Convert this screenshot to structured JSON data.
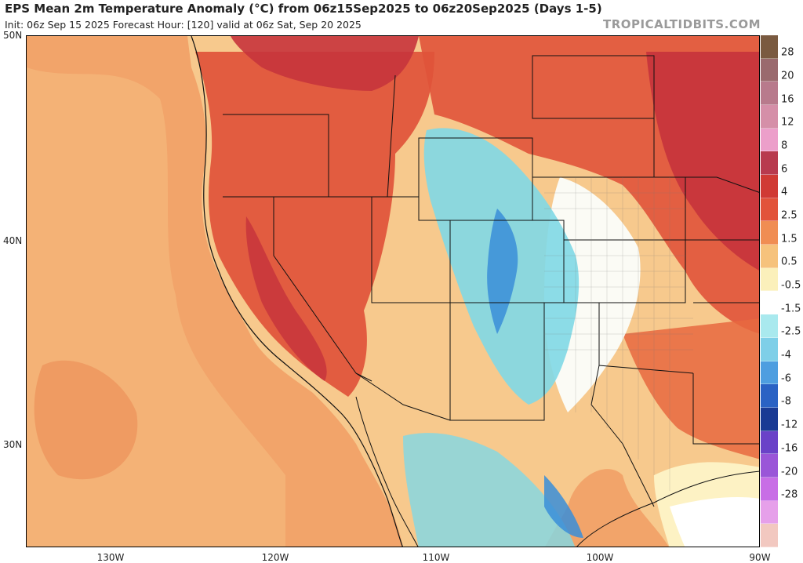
{
  "header": {
    "title": "EPS Mean 2m Temperature Anomaly (°C) from 06z15Sep2025 to 06z20Sep2025 (Days 1-5)",
    "subtitle": "Init: 06z Sep 15 2025   Forecast Hour: [120]   valid at 06z Sat, Sep 20 2025",
    "credit": "TROPICALTIDBITS.COM"
  },
  "axes": {
    "lat_labels": [
      "50N",
      "40N",
      "30N"
    ],
    "lon_labels": [
      "130W",
      "120W",
      "110W",
      "100W",
      "90W"
    ]
  },
  "colorbar": {
    "labels": [
      "28",
      "20",
      "16",
      "12",
      "8",
      "6",
      "4",
      "2.5",
      "1.5",
      "0.5",
      "-0.5",
      "-1.5",
      "-2.5",
      "-4",
      "-6",
      "-8",
      "-12",
      "-16",
      "-20",
      "-28"
    ],
    "colors": [
      "#7a5a40",
      "#9a6a6e",
      "#b87a8c",
      "#d58fa8",
      "#ec9fca",
      "#b83a4e",
      "#d03a34",
      "#e2533a",
      "#f08d53",
      "#f6c27c",
      "#fbf0bb",
      "#ffffff",
      "#a9e9ee",
      "#7ecfe8",
      "#4e9ee0",
      "#2a62c4",
      "#1a3a94",
      "#6a42c8",
      "#9a56d8",
      "#c86ee6",
      "#e6a0ea",
      "#f2c8c0"
    ]
  },
  "map": {
    "ocean_color": "#f2a46a",
    "land_base_color": "#f7c98d",
    "warm_color": "#e0533a",
    "hot_color": "#c7343c",
    "cool_color": "#7fd8e6",
    "cold_color": "#3a8ed8",
    "neutral_color": "#fbfbf5",
    "border_color": "#111111"
  }
}
